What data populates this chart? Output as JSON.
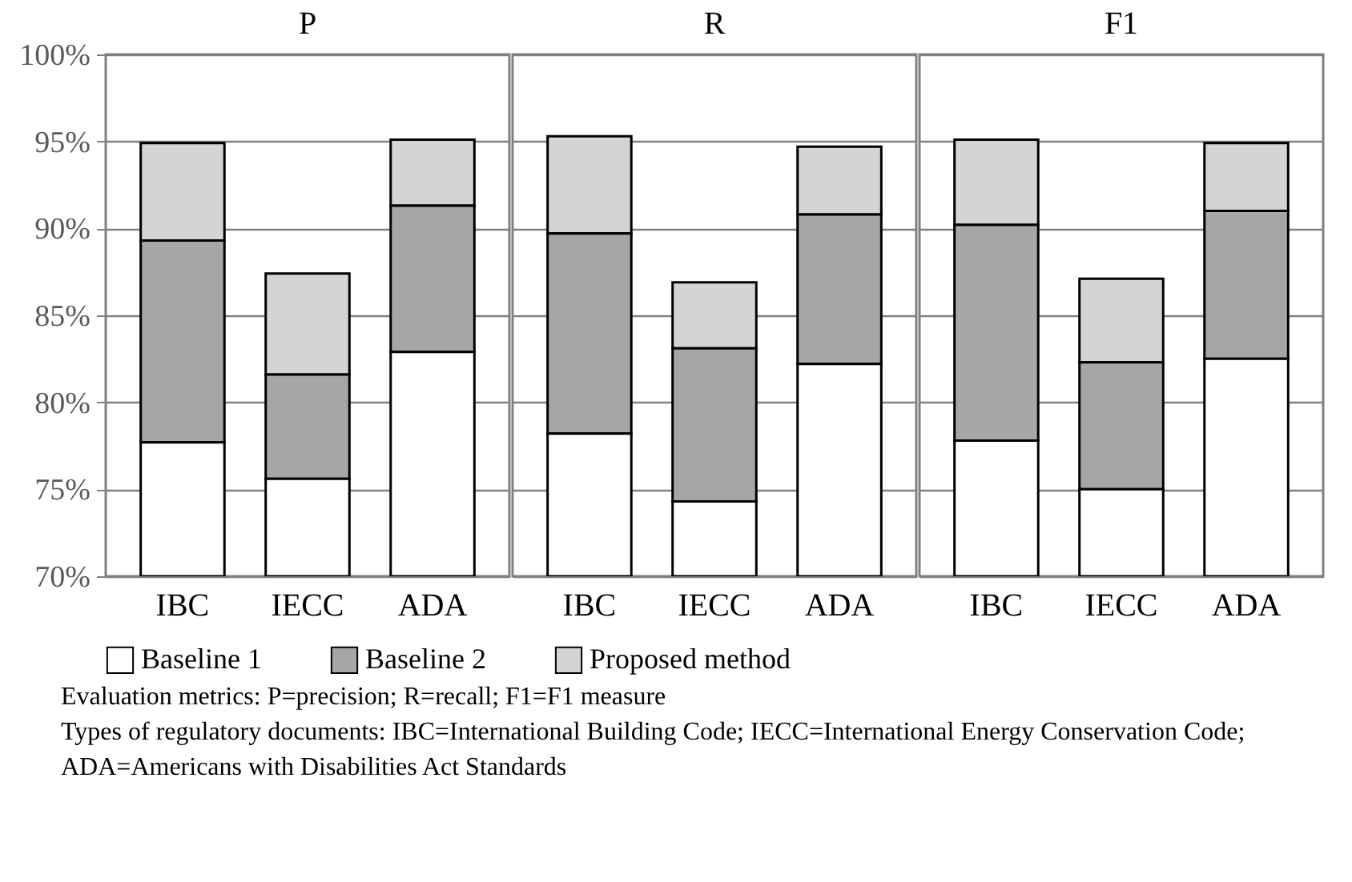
{
  "chart_data": [
    {
      "type": "bar",
      "title": "P",
      "grid": "y",
      "legend": "bottom",
      "categories": [
        "IBC",
        "IECC",
        "ADA"
      ],
      "ylim": [
        70,
        100
      ],
      "yticks": [
        {
          "value": 70,
          "label": "70%"
        },
        {
          "value": 75,
          "label": "75%"
        },
        {
          "value": 80,
          "label": "80%"
        },
        {
          "value": 85,
          "label": "85%"
        },
        {
          "value": 90,
          "label": "90%"
        },
        {
          "value": 95,
          "label": "95%"
        },
        {
          "value": 100,
          "label": "100%"
        }
      ],
      "series": [
        {
          "name": "Baseline 1",
          "color": "#ffffff",
          "base": [
            70,
            70,
            70
          ],
          "values": [
            7.7,
            5.6,
            12.9
          ]
        },
        {
          "name": "Baseline 2",
          "color": "#a6a6a6",
          "base": [
            77.7,
            75.6,
            82.9
          ],
          "values": [
            11.6,
            6.0,
            8.4
          ]
        },
        {
          "name": "Proposed method",
          "color": "#d4d4d4",
          "base": [
            89.3,
            81.6,
            91.3
          ],
          "values": [
            5.6,
            5.8,
            3.8
          ]
        }
      ],
      "annotations": [
        "Evaluation metrics: P=precision; R=recall; F1=F1 measure",
        "Types of regulatory documents: IBC=International Building Code; IECC=International Energy Conservation Code; ADA=Americans with Disabilities Act Standards"
      ]
    },
    {
      "type": "bar",
      "title": "R",
      "grid": "y",
      "tick_labels": "x",
      "categories": [
        "IBC",
        "IECC",
        "ADA"
      ],
      "ylim": [
        70,
        100
      ],
      "yticks": [
        70,
        75,
        80,
        85,
        90,
        95,
        100
      ],
      "series": [
        {
          "color": "#ffffff",
          "base": [
            70,
            70,
            70
          ],
          "values": [
            8.2,
            4.3,
            12.2
          ]
        },
        {
          "color": "#a6a6a6",
          "base": [
            78.2,
            74.3,
            82.2
          ],
          "values": [
            11.5,
            8.8,
            8.6
          ]
        },
        {
          "color": "#d4d4d4",
          "base": [
            89.7,
            83.1,
            90.8
          ],
          "values": [
            5.6,
            3.8,
            3.9
          ]
        }
      ]
    },
    {
      "type": "bar",
      "title": "F1",
      "grid": "y",
      "tick_labels": "x",
      "categories": [
        "IBC",
        "IECC",
        "ADA"
      ],
      "ylim": [
        70,
        100
      ],
      "yticks": [
        70,
        75,
        80,
        85,
        90,
        95,
        100
      ],
      "series": [
        {
          "color": "#ffffff",
          "base": [
            70,
            70,
            70
          ],
          "values": [
            7.8,
            5.0,
            12.5
          ]
        },
        {
          "color": "#a6a6a6",
          "base": [
            77.8,
            75.0,
            82.5
          ],
          "values": [
            12.4,
            7.3,
            8.5
          ]
        },
        {
          "color": "#d4d4d4",
          "base": [
            90.2,
            82.3,
            91.0
          ],
          "values": [
            4.9,
            4.8,
            3.9
          ]
        }
      ]
    }
  ]
}
